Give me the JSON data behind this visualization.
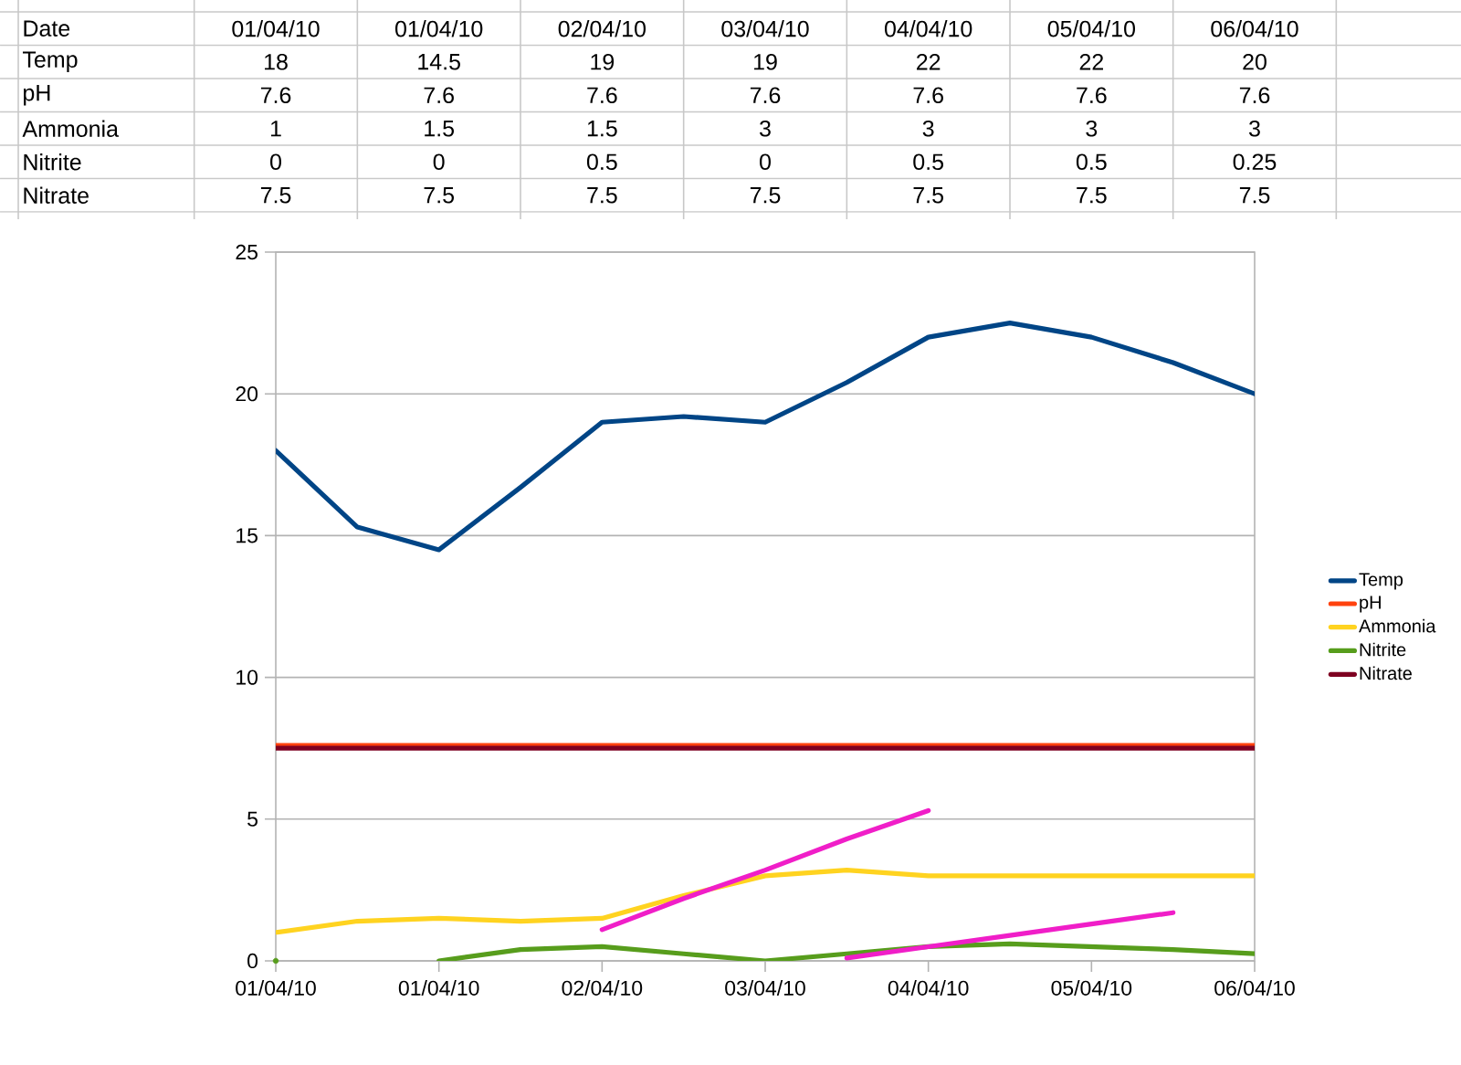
{
  "chart_data": {
    "type": "line",
    "annotations": [
      "Date"
    ],
    "categories": [
      "01/04/10",
      null,
      "01/04/10",
      null,
      "02/04/10",
      null,
      "03/04/10",
      null,
      "04/04/10",
      null,
      "05/04/10",
      null,
      "06/04/10"
    ],
    "ylim": [
      0,
      25
    ],
    "yticks": [
      0,
      5,
      10,
      15,
      20,
      25
    ],
    "grid": "y",
    "legend": "right",
    "series": [
      {
        "name": "Temp",
        "color": "#004586",
        "values": [
          18,
          15.3,
          14.5,
          16.7,
          19,
          19.2,
          19,
          20.4,
          22,
          22.5,
          22,
          21.1,
          20
        ],
        "value_labels": [
          "18",
          null,
          "14.5",
          null,
          "19",
          null,
          "19",
          null,
          "22",
          null,
          "22",
          null,
          "20"
        ]
      },
      {
        "name": "pH",
        "color": "#ff420e",
        "values": [
          7.6,
          7.6,
          7.6,
          7.6,
          7.6,
          7.6,
          7.6,
          7.6,
          7.6,
          7.6,
          7.6,
          7.6,
          7.6
        ],
        "value_labels": [
          "7.6",
          null,
          "7.6",
          null,
          "7.6",
          null,
          "7.6",
          null,
          "7.6",
          null,
          "7.6",
          null,
          "7.6"
        ]
      },
      {
        "name": "Ammonia",
        "color": "#ffd320",
        "values": [
          1,
          1.4,
          1.5,
          1.4,
          1.5,
          2.3,
          3,
          3.2,
          3,
          3,
          3,
          3,
          3
        ],
        "value_labels": [
          "1",
          null,
          "1.5",
          null,
          "1.5",
          null,
          "3",
          null,
          "3",
          null,
          "3",
          null,
          "3"
        ]
      },
      {
        "name": "Nitrite",
        "color": "#579d1c",
        "values": [
          0,
          null,
          0,
          0.4,
          0.5,
          0.25,
          0,
          0.25,
          0.5,
          0.6,
          0.5,
          0.4,
          0.25
        ],
        "value_labels": [
          "0",
          null,
          "0",
          null,
          "0.5",
          null,
          "0",
          null,
          "0.5",
          null,
          "0.5",
          null,
          "0.25"
        ]
      },
      {
        "name": "Nitrate",
        "color": "#7e0021",
        "values": [
          7.5,
          7.5,
          7.5,
          7.5,
          7.5,
          7.5,
          7.5,
          7.5,
          7.5,
          7.5,
          7.5,
          7.5,
          7.5
        ],
        "value_labels": [
          "7.5",
          null,
          "7.5",
          null,
          "7.5",
          null,
          "7.5",
          null,
          "7.5",
          null,
          "7.5",
          null,
          "7.5"
        ]
      },
      {
        "color": "#f01ec8",
        "values": [
          null,
          null,
          null,
          null,
          1.1,
          2.2,
          3.2,
          4.3,
          5.3,
          null,
          null,
          null,
          null
        ]
      },
      {
        "color": "#f01ec8",
        "values": [
          null,
          null,
          null,
          null,
          null,
          null,
          null,
          0.1,
          0.5,
          0.9,
          1.3,
          1.7,
          null
        ]
      }
    ]
  }
}
